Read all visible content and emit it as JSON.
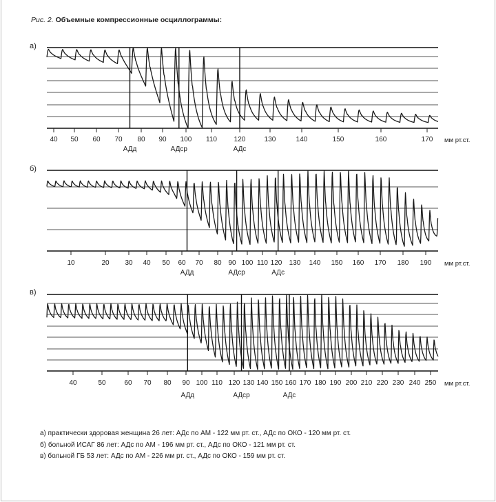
{
  "figure": {
    "label": "Рис. 2.",
    "title": "Объемные компрессионные осциллограммы:"
  },
  "captions": [
    "а)  практически здоровая женщина 26 лет: АДс по АМ - 122 мм рт. ст., АДс по ОКО - 120 мм рт. ст.",
    "б) больной ИСАГ 86 лет: АДс по АМ - 196 мм рт. ст., АДс по ОКО - 121 мм рт. ст.",
    "в) больной ГБ 53 лет: АДс по АМ - 226 мм рт. ст., АДс по ОКО - 159 мм рт. ст."
  ],
  "colors": {
    "trace": "#1a1a1a",
    "grid": "#555555",
    "background": "#ffffff"
  },
  "chart_data": [
    {
      "type": "line",
      "panel_label": "а)",
      "xlabel": "мм рт.ст.",
      "x_ticks": [
        40,
        50,
        60,
        70,
        80,
        90,
        100,
        110,
        120,
        130,
        140,
        150,
        160,
        170
      ],
      "grid": true,
      "markers": [
        {
          "label": "АДд",
          "value": 75
        },
        {
          "label": "АДср",
          "value": 97
        },
        {
          "label": "АДс",
          "value": 120
        }
      ],
      "envelope_columns": [
        "pressure",
        "peak_depth",
        "trough_depth"
      ],
      "envelope": [
        [
          37,
          0.02,
          0.12
        ],
        [
          70,
          0.03,
          0.2
        ],
        [
          75,
          0.0,
          0.3
        ],
        [
          85,
          0.0,
          0.55
        ],
        [
          92,
          0.0,
          0.8
        ],
        [
          97,
          0.0,
          1.0
        ],
        [
          105,
          0.05,
          1.0
        ],
        [
          112,
          0.25,
          0.95
        ],
        [
          120,
          0.5,
          0.9
        ],
        [
          130,
          0.6,
          0.9
        ],
        [
          150,
          0.75,
          0.92
        ],
        [
          173,
          0.85,
          0.93
        ]
      ]
    },
    {
      "type": "line",
      "panel_label": "б)",
      "xlabel": "мм рт.ст.",
      "x_ticks": [
        10,
        20,
        30,
        40,
        50,
        60,
        70,
        80,
        90,
        100,
        110,
        120,
        130,
        140,
        150,
        160,
        170,
        180,
        190
      ],
      "grid": true,
      "markers": [
        {
          "label": "АДд",
          "value": 63
        },
        {
          "label": "АДср",
          "value": 93
        },
        {
          "label": "АДс",
          "value": 121
        }
      ],
      "envelope_columns": [
        "pressure",
        "peak_depth",
        "trough_depth"
      ],
      "envelope": [
        [
          3,
          0.13,
          0.2
        ],
        [
          40,
          0.13,
          0.23
        ],
        [
          55,
          0.13,
          0.32
        ],
        [
          62,
          0.14,
          0.45
        ],
        [
          70,
          0.14,
          0.6
        ],
        [
          80,
          0.13,
          0.8
        ],
        [
          90,
          0.12,
          0.92
        ],
        [
          100,
          0.1,
          0.92
        ],
        [
          120,
          0.05,
          0.9
        ],
        [
          140,
          0.0,
          0.9
        ],
        [
          160,
          0.0,
          0.9
        ],
        [
          175,
          0.1,
          0.92
        ],
        [
          180,
          0.25,
          0.95
        ],
        [
          190,
          0.45,
          0.9
        ],
        [
          196,
          0.6,
          0.8
        ]
      ]
    },
    {
      "type": "line",
      "panel_label": "в)",
      "xlabel": "мм рт.ст.",
      "x_ticks": [
        40,
        50,
        60,
        70,
        80,
        90,
        100,
        110,
        120,
        130,
        140,
        150,
        160,
        170,
        180,
        190,
        200,
        210,
        220,
        230,
        240,
        250
      ],
      "grid": true,
      "markers": [
        {
          "label": "АДд",
          "value": 91
        },
        {
          "label": "АДср",
          "value": 125
        },
        {
          "label": "АДс",
          "value": 159
        }
      ],
      "envelope_columns": [
        "pressure",
        "peak_depth",
        "trough_depth"
      ],
      "envelope": [
        [
          31,
          0.12,
          0.3
        ],
        [
          80,
          0.12,
          0.35
        ],
        [
          90,
          0.12,
          0.5
        ],
        [
          100,
          0.12,
          0.65
        ],
        [
          110,
          0.13,
          0.85
        ],
        [
          120,
          0.1,
          0.95
        ],
        [
          130,
          0.05,
          0.98
        ],
        [
          150,
          0.0,
          0.98
        ],
        [
          190,
          0.0,
          0.97
        ],
        [
          210,
          0.2,
          0.93
        ],
        [
          230,
          0.45,
          0.9
        ],
        [
          255,
          0.6,
          0.85
        ]
      ]
    }
  ]
}
